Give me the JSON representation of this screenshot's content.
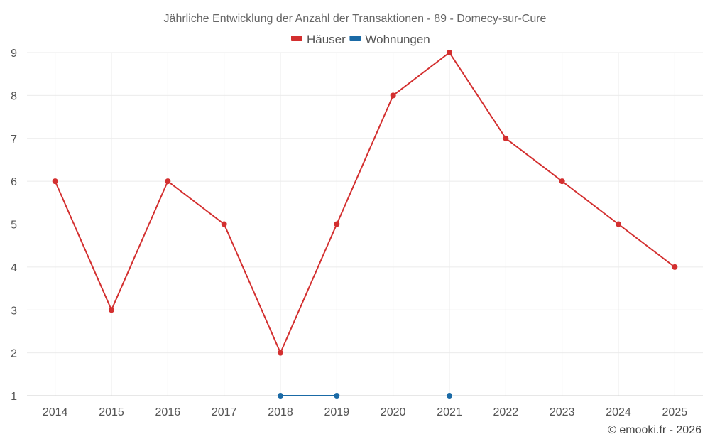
{
  "chart_data": {
    "type": "line",
    "title": "Jährliche Entwicklung der Anzahl der Transaktionen - 89 - Domecy-sur-Cure",
    "categories": [
      "2014",
      "2015",
      "2016",
      "2017",
      "2018",
      "2019",
      "2020",
      "2021",
      "2022",
      "2023",
      "2024",
      "2025"
    ],
    "ylim": [
      1,
      9
    ],
    "yticks": [
      1,
      2,
      3,
      4,
      5,
      6,
      7,
      8,
      9
    ],
    "grid": true,
    "legend_position": "top-center",
    "series": [
      {
        "name": "Häuser",
        "color": "#d32f2f",
        "values": [
          6,
          3,
          6,
          5,
          2,
          5,
          8,
          9,
          7,
          6,
          5,
          4
        ]
      },
      {
        "name": "Wohnungen",
        "color": "#1a6aa6",
        "values": [
          null,
          null,
          null,
          null,
          1,
          1,
          null,
          1,
          null,
          null,
          null,
          null
        ]
      }
    ]
  },
  "credit": "© emooki.fr - 2026"
}
